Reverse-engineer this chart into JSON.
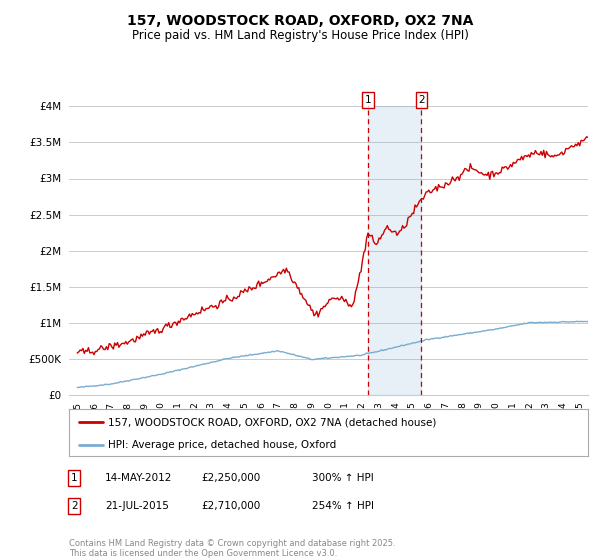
{
  "title": "157, WOODSTOCK ROAD, OXFORD, OX2 7NA",
  "subtitle": "Price paid vs. HM Land Registry's House Price Index (HPI)",
  "hpi_label": "HPI: Average price, detached house, Oxford",
  "property_label": "157, WOODSTOCK ROAD, OXFORD, OX2 7NA (detached house)",
  "footnote": "Contains HM Land Registry data © Crown copyright and database right 2025.\nThis data is licensed under the Open Government Licence v3.0.",
  "sale1_date": "14-MAY-2012",
  "sale1_price": 2250000,
  "sale1_pct": "300%",
  "sale2_date": "21-JUL-2015",
  "sale2_price": 2710000,
  "sale2_pct": "254%",
  "sale1_x": 2012.37,
  "sale2_x": 2015.55,
  "ylim": [
    0,
    4000000
  ],
  "xlim": [
    1994.5,
    2025.5
  ],
  "property_color": "#cc0000",
  "hpi_color": "#7aadcf",
  "background_color": "#ffffff",
  "grid_color": "#cccccc",
  "sale_box_fill": "#ddeeff",
  "yticks": [
    0,
    500000,
    1000000,
    1500000,
    2000000,
    2500000,
    3000000,
    3500000,
    4000000
  ],
  "xticks": [
    1995,
    1996,
    1997,
    1998,
    1999,
    2000,
    2001,
    2002,
    2003,
    2004,
    2005,
    2006,
    2007,
    2008,
    2009,
    2010,
    2011,
    2012,
    2013,
    2014,
    2015,
    2016,
    2017,
    2018,
    2019,
    2020,
    2021,
    2022,
    2023,
    2024,
    2025
  ]
}
